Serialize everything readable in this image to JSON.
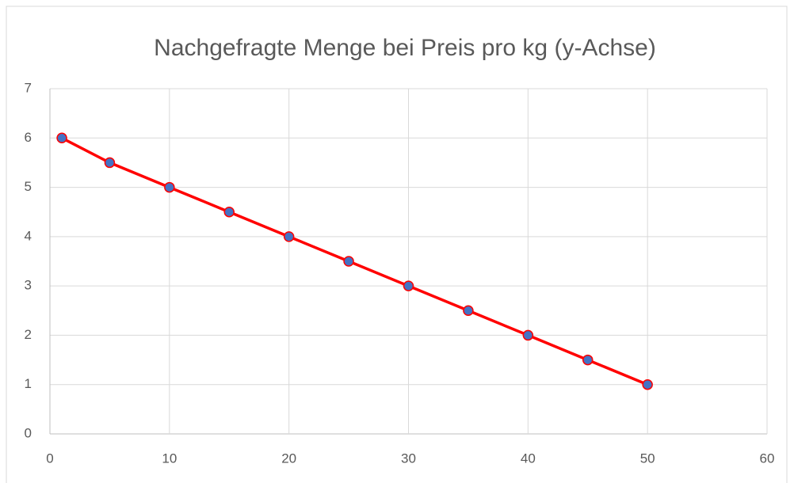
{
  "chart_data": {
    "type": "scatter",
    "title": "Nachgefragte Menge bei Preis pro kg (y-Achse)",
    "x": [
      1,
      5,
      10,
      15,
      20,
      25,
      30,
      35,
      40,
      45,
      50
    ],
    "series": [
      {
        "color": "#ff0000",
        "marker_color": "#4472c4",
        "line": true,
        "values": [
          6,
          5.5,
          5,
          4.5,
          4,
          3.5,
          3,
          2.5,
          2,
          1.5,
          1
        ]
      }
    ],
    "xlim": [
      0,
      60
    ],
    "xticks": [
      0,
      10,
      20,
      30,
      40,
      50,
      60
    ],
    "ylim": [
      0,
      7
    ],
    "yticks": [
      0,
      1,
      2,
      3,
      4,
      5,
      6,
      7
    ],
    "grid": true
  }
}
